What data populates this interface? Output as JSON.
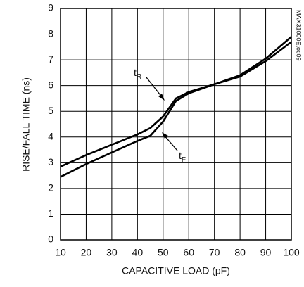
{
  "chart_data": {
    "type": "line",
    "xlabel": "CAPACITIVE LOAD (pF)",
    "ylabel": "RISE/FALL TIME (ns)",
    "watermark": "MAX31000Etoc09",
    "x": [
      10,
      20,
      30,
      40,
      45,
      50,
      55,
      60,
      70,
      80,
      90,
      100
    ],
    "series": [
      {
        "color": "#000000",
        "values": [
          2.85,
          3.3,
          3.7,
          4.1,
          4.35,
          4.8,
          5.5,
          5.75,
          6.05,
          6.4,
          7.05,
          7.9
        ]
      },
      {
        "color": "#000000",
        "values": [
          2.45,
          2.95,
          3.4,
          3.85,
          4.05,
          4.6,
          5.4,
          5.7,
          6.05,
          6.35,
          6.95,
          7.7
        ]
      }
    ],
    "annotations": [
      {
        "text": "t",
        "sub": "R"
      },
      {
        "text": "t",
        "sub": "F"
      }
    ],
    "xlim": [
      10,
      100
    ],
    "xticks": [
      10,
      20,
      30,
      40,
      50,
      60,
      70,
      80,
      90,
      100
    ],
    "ylim": [
      0,
      9
    ],
    "yticks": [
      0,
      1,
      2,
      3,
      4,
      5,
      6,
      7,
      8,
      9
    ],
    "grid": true
  }
}
